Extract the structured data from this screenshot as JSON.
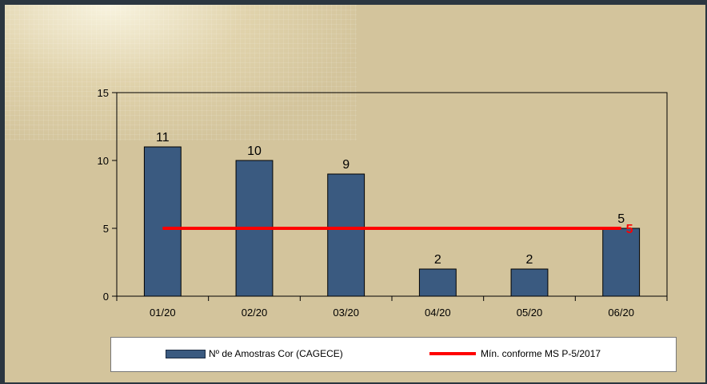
{
  "chart_data": {
    "type": "bar",
    "categories": [
      "01/20",
      "02/20",
      "03/20",
      "04/20",
      "05/20",
      "06/20"
    ],
    "series": [
      {
        "name": "Nº de Amostras Cor (CAGECE)",
        "type": "bar",
        "values": [
          11,
          10,
          9,
          2,
          2,
          5
        ],
        "color": "#3a5a80"
      },
      {
        "name": "Mín. conforme MS  P-5/2017",
        "type": "line",
        "values": [
          5,
          5,
          5,
          5,
          5,
          5
        ],
        "color": "#ff0000"
      }
    ],
    "line_end_label": "5",
    "yticks": [
      "0",
      "5",
      "10",
      "15"
    ],
    "ylim": [
      0,
      15
    ],
    "grid": false,
    "legend_position": "bottom"
  }
}
